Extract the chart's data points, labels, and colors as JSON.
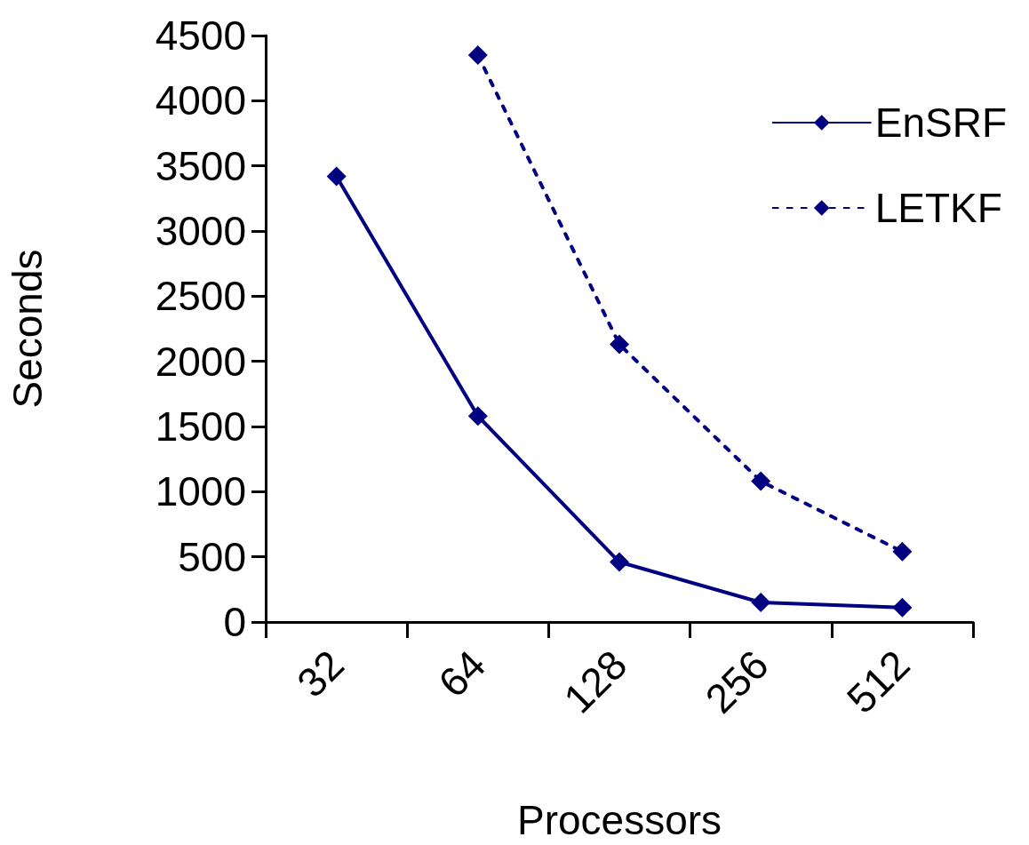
{
  "chart_data": {
    "type": "line",
    "xlabel": "Processors",
    "ylabel": "Seconds",
    "categories": [
      "32",
      "64",
      "128",
      "256",
      "512"
    ],
    "series": [
      {
        "name": "EnSRF",
        "color": "#000080",
        "line_style": "solid",
        "values": [
          3420,
          1580,
          460,
          150,
          110
        ]
      },
      {
        "name": "LETKF",
        "color": "#000080",
        "line_style": "dotted",
        "values": [
          null,
          4350,
          2130,
          1080,
          540
        ]
      }
    ],
    "ylim": [
      0,
      4500
    ],
    "yticks": [
      0,
      500,
      1000,
      1500,
      2000,
      2500,
      3000,
      3500,
      4000,
      4500
    ],
    "grid": false,
    "legend": "top right",
    "marker": "diamond"
  }
}
